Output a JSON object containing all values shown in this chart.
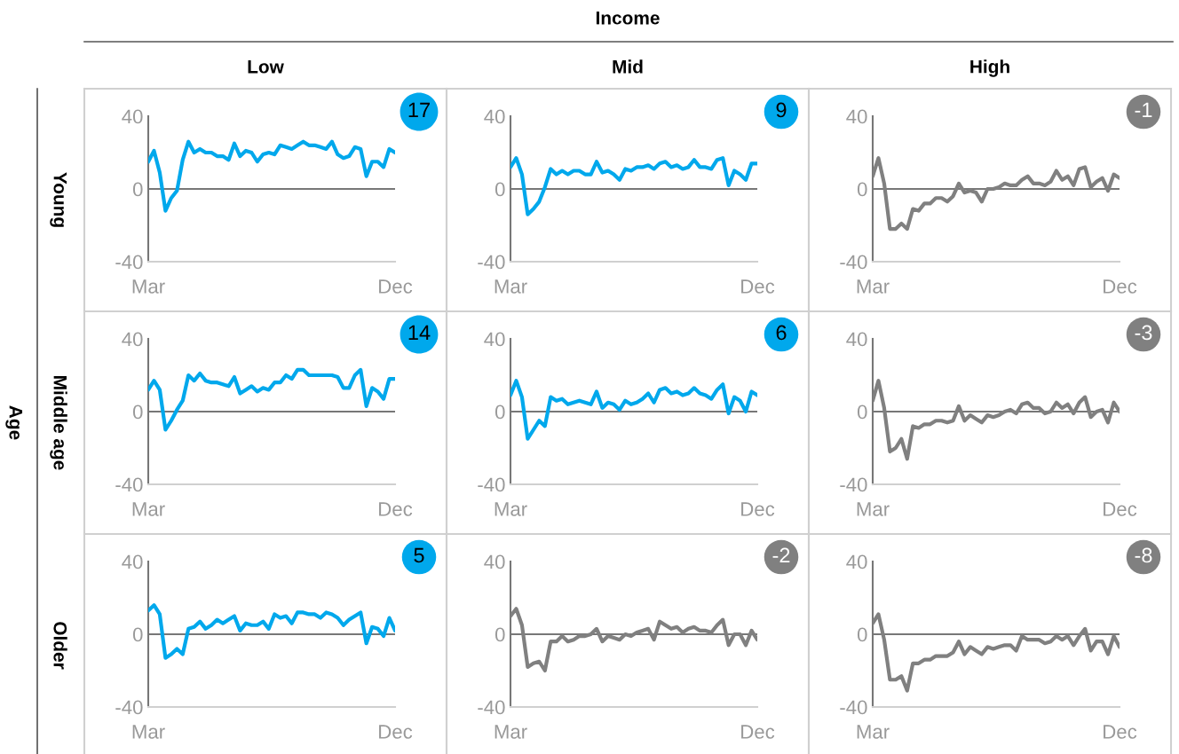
{
  "chart_data": [
    {
      "type": "line",
      "title": "Low",
      "ylabel": "Young",
      "annotations": [
        "17"
      ],
      "categories": [
        "Mar",
        null,
        null,
        null,
        null,
        null,
        null,
        null,
        null,
        null,
        null,
        null,
        null,
        null,
        null,
        null,
        null,
        null,
        null,
        null,
        null,
        null,
        null,
        null,
        null,
        null,
        null,
        null,
        null,
        null,
        null,
        null,
        null,
        null,
        null,
        null,
        null,
        null,
        null,
        null,
        null,
        null,
        null,
        "Dec"
      ],
      "ylim": [
        -40,
        40
      ],
      "yticks": [
        -40,
        0,
        40
      ],
      "grid": false,
      "legend": false,
      "ref_lines": [
        {
          "axis": "y",
          "value": 0,
          "label": null,
          "color": "#777777"
        }
      ],
      "series": [
        {
          "color": "#00a8ec",
          "values": [
            15,
            21,
            9,
            -12,
            -5,
            -1,
            16,
            26,
            20,
            22,
            20,
            20,
            18,
            18,
            16,
            25,
            18,
            21,
            20,
            15,
            19,
            20,
            19,
            24,
            23,
            22,
            24,
            26,
            24,
            24,
            23,
            22,
            26,
            19,
            17,
            18,
            23,
            22,
            7,
            15,
            15,
            12,
            22,
            20
          ]
        }
      ]
    },
    {
      "type": "line",
      "title": "Mid",
      "annotations": [
        "Income",
        "9"
      ],
      "categories": [
        "Mar",
        null,
        null,
        null,
        null,
        null,
        null,
        null,
        null,
        null,
        null,
        null,
        null,
        null,
        null,
        null,
        null,
        null,
        null,
        null,
        null,
        null,
        null,
        null,
        null,
        null,
        null,
        null,
        null,
        null,
        null,
        null,
        null,
        null,
        null,
        null,
        null,
        null,
        null,
        null,
        null,
        null,
        null,
        "Dec"
      ],
      "ylim": [
        -40,
        40
      ],
      "yticks": [
        -40,
        0,
        40
      ],
      "grid": false,
      "legend": false,
      "ref_lines": [
        {
          "axis": "y",
          "value": 0,
          "label": null,
          "color": "#777777"
        }
      ],
      "series": [
        {
          "color": "#00a8ec",
          "values": [
            12,
            17,
            8,
            -14,
            -11,
            -7,
            1,
            11,
            8,
            10,
            8,
            10,
            10,
            8,
            8,
            15,
            9,
            10,
            8,
            5,
            11,
            10,
            12,
            12,
            13,
            11,
            14,
            15,
            12,
            13,
            11,
            12,
            16,
            12,
            12,
            11,
            16,
            17,
            2,
            10,
            8,
            5,
            14,
            14
          ]
        }
      ]
    },
    {
      "type": "line",
      "title": "High",
      "annotations": [
        "-1"
      ],
      "categories": [
        "Mar",
        null,
        null,
        null,
        null,
        null,
        null,
        null,
        null,
        null,
        null,
        null,
        null,
        null,
        null,
        null,
        null,
        null,
        null,
        null,
        null,
        null,
        null,
        null,
        null,
        null,
        null,
        null,
        null,
        null,
        null,
        null,
        null,
        null,
        null,
        null,
        null,
        null,
        null,
        null,
        null,
        null,
        null,
        "Dec"
      ],
      "ylim": [
        -40,
        40
      ],
      "yticks": [
        -40,
        0,
        40
      ],
      "grid": false,
      "legend": false,
      "ref_lines": [
        {
          "axis": "y",
          "value": 0,
          "label": null,
          "color": "#777777"
        }
      ],
      "series": [
        {
          "color": "#808080",
          "values": [
            7,
            17,
            3,
            -22,
            -22,
            -19,
            -22,
            -11,
            -12,
            -8,
            -8,
            -5,
            -5,
            -7,
            -4,
            3,
            -2,
            -1,
            -2,
            -7,
            0,
            0,
            1,
            3,
            2,
            2,
            5,
            7,
            3,
            3,
            2,
            4,
            10,
            5,
            7,
            2,
            11,
            12,
            1,
            4,
            6,
            -1,
            8,
            6
          ]
        }
      ]
    },
    {
      "type": "line",
      "ylabel": "Middle age",
      "annotations": [
        "Age",
        "14"
      ],
      "categories": [
        "Mar",
        null,
        null,
        null,
        null,
        null,
        null,
        null,
        null,
        null,
        null,
        null,
        null,
        null,
        null,
        null,
        null,
        null,
        null,
        null,
        null,
        null,
        null,
        null,
        null,
        null,
        null,
        null,
        null,
        null,
        null,
        null,
        null,
        null,
        null,
        null,
        null,
        null,
        null,
        null,
        null,
        null,
        null,
        "Dec"
      ],
      "ylim": [
        -40,
        40
      ],
      "yticks": [
        -40,
        0,
        40
      ],
      "grid": false,
      "legend": false,
      "ref_lines": [
        {
          "axis": "y",
          "value": 0,
          "label": null,
          "color": "#777777"
        }
      ],
      "series": [
        {
          "color": "#00a8ec",
          "values": [
            12,
            17,
            12,
            -10,
            -5,
            1,
            6,
            20,
            17,
            21,
            17,
            16,
            16,
            15,
            14,
            19,
            10,
            12,
            14,
            11,
            13,
            12,
            16,
            16,
            20,
            18,
            23,
            23,
            20,
            20,
            20,
            20,
            20,
            19,
            13,
            13,
            20,
            23,
            3,
            13,
            11,
            7,
            18,
            18
          ]
        }
      ]
    },
    {
      "type": "line",
      "annotations": [
        "6"
      ],
      "categories": [
        "Mar",
        null,
        null,
        null,
        null,
        null,
        null,
        null,
        null,
        null,
        null,
        null,
        null,
        null,
        null,
        null,
        null,
        null,
        null,
        null,
        null,
        null,
        null,
        null,
        null,
        null,
        null,
        null,
        null,
        null,
        null,
        null,
        null,
        null,
        null,
        null,
        null,
        null,
        null,
        null,
        null,
        null,
        null,
        "Dec"
      ],
      "ylim": [
        -40,
        40
      ],
      "yticks": [
        -40,
        0,
        40
      ],
      "grid": false,
      "legend": false,
      "ref_lines": [
        {
          "axis": "y",
          "value": 0,
          "label": null,
          "color": "#777777"
        }
      ],
      "series": [
        {
          "color": "#00a8ec",
          "values": [
            9,
            17,
            8,
            -15,
            -10,
            -5,
            -8,
            8,
            6,
            7,
            4,
            5,
            6,
            5,
            4,
            11,
            2,
            5,
            4,
            1,
            6,
            4,
            5,
            7,
            10,
            5,
            12,
            13,
            10,
            11,
            9,
            10,
            13,
            10,
            9,
            7,
            12,
            15,
            -1,
            8,
            6,
            0,
            11,
            9
          ]
        }
      ]
    },
    {
      "type": "line",
      "annotations": [
        "-3"
      ],
      "categories": [
        "Mar",
        null,
        null,
        null,
        null,
        null,
        null,
        null,
        null,
        null,
        null,
        null,
        null,
        null,
        null,
        null,
        null,
        null,
        null,
        null,
        null,
        null,
        null,
        null,
        null,
        null,
        null,
        null,
        null,
        null,
        null,
        null,
        null,
        null,
        null,
        null,
        null,
        null,
        null,
        null,
        null,
        null,
        null,
        "Dec"
      ],
      "ylim": [
        -40,
        40
      ],
      "yticks": [
        -40,
        0,
        40
      ],
      "grid": false,
      "legend": false,
      "ref_lines": [
        {
          "axis": "y",
          "value": 0,
          "label": null,
          "color": "#777777"
        }
      ],
      "series": [
        {
          "color": "#808080",
          "values": [
            6,
            17,
            2,
            -22,
            -20,
            -15,
            -26,
            -8,
            -9,
            -7,
            -7,
            -5,
            -5,
            -6,
            -5,
            3,
            -5,
            -2,
            -4,
            -6,
            -2,
            -3,
            -2,
            0,
            1,
            -1,
            4,
            5,
            2,
            2,
            -1,
            0,
            5,
            2,
            4,
            -1,
            5,
            8,
            -3,
            0,
            1,
            -6,
            5,
            0
          ]
        }
      ]
    },
    {
      "type": "line",
      "ylabel": "Older",
      "annotations": [
        "5"
      ],
      "categories": [
        "Mar",
        null,
        null,
        null,
        null,
        null,
        null,
        null,
        null,
        null,
        null,
        null,
        null,
        null,
        null,
        null,
        null,
        null,
        null,
        null,
        null,
        null,
        null,
        null,
        null,
        null,
        null,
        null,
        null,
        null,
        null,
        null,
        null,
        null,
        null,
        null,
        null,
        null,
        null,
        null,
        null,
        null,
        null,
        "Dec"
      ],
      "ylim": [
        -40,
        40
      ],
      "yticks": [
        -40,
        0,
        40
      ],
      "grid": false,
      "legend": false,
      "ref_lines": [
        {
          "axis": "y",
          "value": 0,
          "label": null,
          "color": "#777777"
        }
      ],
      "series": [
        {
          "color": "#00a8ec",
          "values": [
            13,
            16,
            11,
            -13,
            -11,
            -8,
            -11,
            3,
            4,
            7,
            3,
            5,
            8,
            6,
            8,
            10,
            2,
            6,
            5,
            5,
            7,
            3,
            11,
            9,
            10,
            6,
            12,
            12,
            11,
            11,
            9,
            12,
            11,
            9,
            5,
            8,
            10,
            12,
            -5,
            4,
            3,
            -1,
            9,
            2
          ]
        }
      ]
    },
    {
      "type": "line",
      "annotations": [
        "-2"
      ],
      "categories": [
        "Mar",
        null,
        null,
        null,
        null,
        null,
        null,
        null,
        null,
        null,
        null,
        null,
        null,
        null,
        null,
        null,
        null,
        null,
        null,
        null,
        null,
        null,
        null,
        null,
        null,
        null,
        null,
        null,
        null,
        null,
        null,
        null,
        null,
        null,
        null,
        null,
        null,
        null,
        null,
        null,
        null,
        null,
        null,
        "Dec"
      ],
      "ylim": [
        -40,
        40
      ],
      "yticks": [
        -40,
        0,
        40
      ],
      "grid": false,
      "legend": false,
      "ref_lines": [
        {
          "axis": "y",
          "value": 0,
          "label": null,
          "color": "#777777"
        }
      ],
      "series": [
        {
          "color": "#808080",
          "values": [
            10,
            14,
            5,
            -18,
            -16,
            -15,
            -20,
            -4,
            -4,
            -1,
            -4,
            -3,
            -1,
            -1,
            0,
            3,
            -4,
            -1,
            -2,
            -3,
            0,
            -1,
            1,
            2,
            3,
            -3,
            7,
            5,
            3,
            4,
            1,
            3,
            4,
            2,
            2,
            1,
            5,
            8,
            -6,
            0,
            0,
            -6,
            2,
            -3
          ]
        }
      ]
    },
    {
      "type": "line",
      "annotations": [
        "-8"
      ],
      "categories": [
        "Mar",
        null,
        null,
        null,
        null,
        null,
        null,
        null,
        null,
        null,
        null,
        null,
        null,
        null,
        null,
        null,
        null,
        null,
        null,
        null,
        null,
        null,
        null,
        null,
        null,
        null,
        null,
        null,
        null,
        null,
        null,
        null,
        null,
        null,
        null,
        null,
        null,
        null,
        null,
        null,
        null,
        null,
        null,
        "Dec"
      ],
      "ylim": [
        -40,
        40
      ],
      "yticks": [
        -40,
        0,
        40
      ],
      "grid": false,
      "legend": false,
      "ref_lines": [
        {
          "axis": "y",
          "value": 0,
          "label": null,
          "color": "#777777"
        }
      ],
      "series": [
        {
          "color": "#808080",
          "values": [
            6,
            11,
            -3,
            -25,
            -25,
            -23,
            -31,
            -16,
            -16,
            -14,
            -14,
            -12,
            -12,
            -12,
            -10,
            -4,
            -11,
            -7,
            -9,
            -11,
            -7,
            -8,
            -7,
            -6,
            -6,
            -9,
            -1,
            -3,
            -3,
            -3,
            -5,
            -4,
            -1,
            -3,
            -1,
            -6,
            -1,
            3,
            -9,
            -4,
            -4,
            -11,
            -1,
            -7
          ]
        }
      ]
    }
  ]
}
